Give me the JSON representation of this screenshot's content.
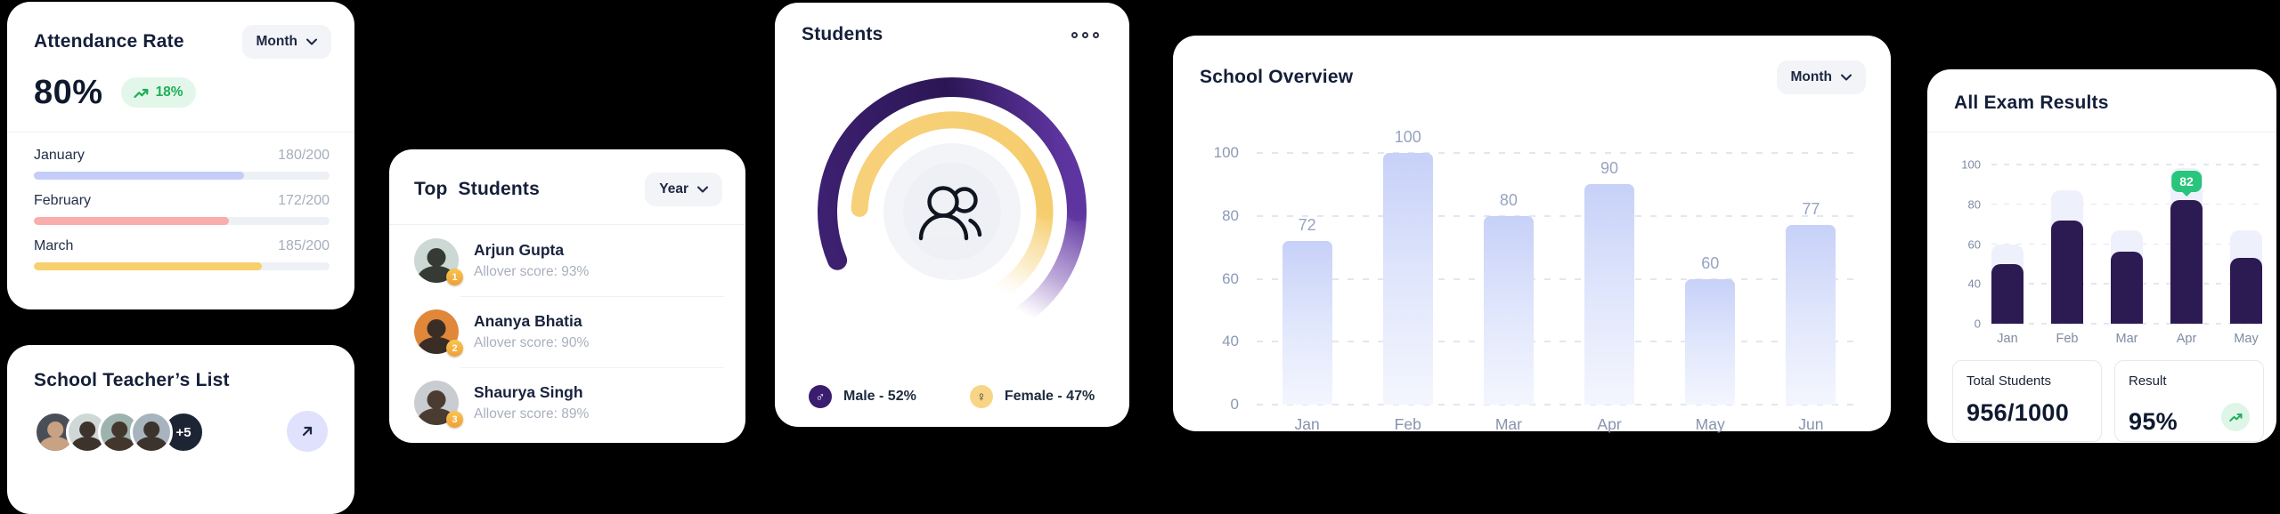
{
  "theme": {
    "background": "#000000",
    "card_bg": "#ffffff",
    "title": "#151f39",
    "muted": "#a6aebc",
    "green": "#1fae57",
    "green_bg": "#e2f7e9",
    "pill_bg": "#f3f4f7",
    "purple_dark": "#2b1655",
    "purple": "#5e35a0",
    "gold": "#f6cd6d",
    "exam_bar": "#2c1a52",
    "exam_track": "#eef1fb",
    "tooltip_green": "#29c57d",
    "lavender_button": "#e0e1fc",
    "navy_chip": "#1d2535"
  },
  "attendance": {
    "title": "Attendance Rate",
    "period": "Month",
    "rate": "80%",
    "delta": "18%",
    "months": [
      {
        "label": "January",
        "value": "180/200",
        "pct": 71,
        "color": "#c3cdf8"
      },
      {
        "label": "February",
        "value": "172/200",
        "pct": 66,
        "color": "#f9aeac"
      },
      {
        "label": "March",
        "value": "185/200",
        "pct": 77,
        "color": "#f8d06e"
      }
    ]
  },
  "teachers": {
    "title": "School Teacher’s List",
    "more": "+5",
    "avatar_colors": [
      [
        "#4a4f57",
        "#c9a183"
      ],
      [
        "#cfd8d6",
        "#3c332c"
      ],
      [
        "#9fb3ae",
        "#43362c"
      ],
      [
        "#a7b4bd",
        "#3c332c"
      ]
    ]
  },
  "top_students": {
    "title": "Top Students",
    "period": "Year",
    "students": [
      {
        "name": "Arjun Gupta",
        "score": "Allover score: 93%",
        "rank": "1",
        "colors": [
          "#ccd8d3",
          "#363a35"
        ]
      },
      {
        "name": "Ananya Bhatia",
        "score": "Allover score: 90%",
        "rank": "2",
        "colors": [
          "#e0873a",
          "#3a2d26"
        ]
      },
      {
        "name": "Shaurya Singh",
        "score": "Allover score: 89%",
        "rank": "3",
        "colors": [
          "#c9cdd1",
          "#4a3c31"
        ]
      }
    ]
  },
  "students_card": {
    "title": "Students",
    "legend": [
      {
        "label": "Male - 52%",
        "symbol": "♂",
        "dot": "#3a1d6e",
        "symbol_color": "#ffffff"
      },
      {
        "label": "Female - 47%",
        "symbol": "♀",
        "dot": "#f8d586",
        "symbol_color": "#222a38"
      }
    ]
  },
  "overview": {
    "title": "School Overview",
    "period": "Month"
  },
  "exam": {
    "title": "All Exam Results",
    "stats": [
      {
        "label": "Total Students",
        "value": "956/1000"
      },
      {
        "label": "Result",
        "value": "95%"
      }
    ]
  },
  "chart_data": [
    {
      "id": "overview",
      "type": "bar",
      "title": "School Overview",
      "categories": [
        "Jan",
        "Feb",
        "Mar",
        "Apr",
        "May",
        "Jun"
      ],
      "values": [
        72,
        100,
        80,
        90,
        60,
        77
      ],
      "yticks": [
        0,
        40,
        60,
        80,
        100
      ],
      "ylim": [
        0,
        100
      ],
      "grid": "dashed-horizontal",
      "value_labels": true,
      "bar_gradient": [
        "#c7d1f8",
        "#f4f6fe"
      ]
    },
    {
      "id": "exam",
      "type": "bar",
      "title": "All Exam Results",
      "categories": [
        "Jan",
        "Feb",
        "Mar",
        "Apr",
        "May"
      ],
      "series": [
        {
          "name": "track",
          "color": "#eef1fb",
          "values": [
            60,
            87,
            67,
            98,
            67
          ]
        },
        {
          "name": "result",
          "color": "#2c1a52",
          "values": [
            50,
            72,
            56,
            82,
            53
          ]
        }
      ],
      "yticks": [
        0,
        40,
        60,
        80,
        100
      ],
      "ylim": [
        0,
        100
      ],
      "tooltip": {
        "category": "Apr",
        "value": "82",
        "color": "#29c57d"
      }
    },
    {
      "id": "students-gauge",
      "type": "gauge",
      "title": "Students",
      "series": [
        {
          "name": "Male",
          "value": 52,
          "color": "#3a1d6e"
        },
        {
          "name": "Female",
          "value": 47,
          "color": "#f6cd6d"
        }
      ]
    }
  ]
}
